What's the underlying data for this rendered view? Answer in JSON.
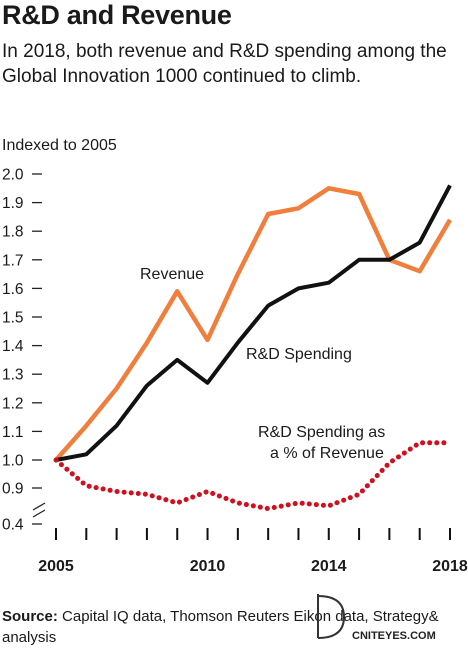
{
  "header": {
    "title": "R&D and Revenue",
    "subtitle": "In 2018, both revenue and R&D spending among the Global Innovation 1000 continued to climb."
  },
  "chart_data": {
    "type": "line",
    "ylabel": "Indexed to 2005",
    "x": [
      2005,
      2006,
      2007,
      2008,
      2009,
      2010,
      2011,
      2012,
      2013,
      2014,
      2015,
      2016,
      2017,
      2018
    ],
    "x_tick_labels": [
      "2005",
      "2010",
      "2014",
      "2018"
    ],
    "y_tick_labels": [
      "2.0",
      "1.9",
      "1.8",
      "1.7",
      "1.6",
      "1.5",
      "1.4",
      "1.3",
      "1.2",
      "1.1",
      "1.0",
      "0.9",
      "0.4"
    ],
    "ylim": [
      0.4,
      2.0
    ],
    "axis_break": true,
    "series": [
      {
        "name": "Revenue",
        "color": "#f07e3c",
        "values": [
          1.0,
          1.12,
          1.25,
          1.41,
          1.59,
          1.42,
          1.65,
          1.86,
          1.88,
          1.95,
          1.93,
          1.7,
          1.66,
          1.84
        ]
      },
      {
        "name": "R&D Spending",
        "color": "#111111",
        "values": [
          1.0,
          1.02,
          1.12,
          1.26,
          1.35,
          1.27,
          1.41,
          1.54,
          1.6,
          1.62,
          1.7,
          1.7,
          1.76,
          1.96
        ]
      },
      {
        "name": "R&D Spending as a % of Revenue",
        "color": "#d0101e",
        "style": "dotted",
        "values": [
          1.0,
          0.91,
          0.89,
          0.88,
          0.85,
          0.89,
          0.85,
          0.83,
          0.85,
          0.84,
          0.88,
          0.99,
          1.06,
          1.06
        ]
      }
    ]
  },
  "footer": {
    "source_label": "Source:",
    "source_text": "Capital IQ data, Thomson Reuters Eikon data, Strategy& analysis"
  },
  "watermark": {
    "text": "CNITEYES.COM"
  }
}
